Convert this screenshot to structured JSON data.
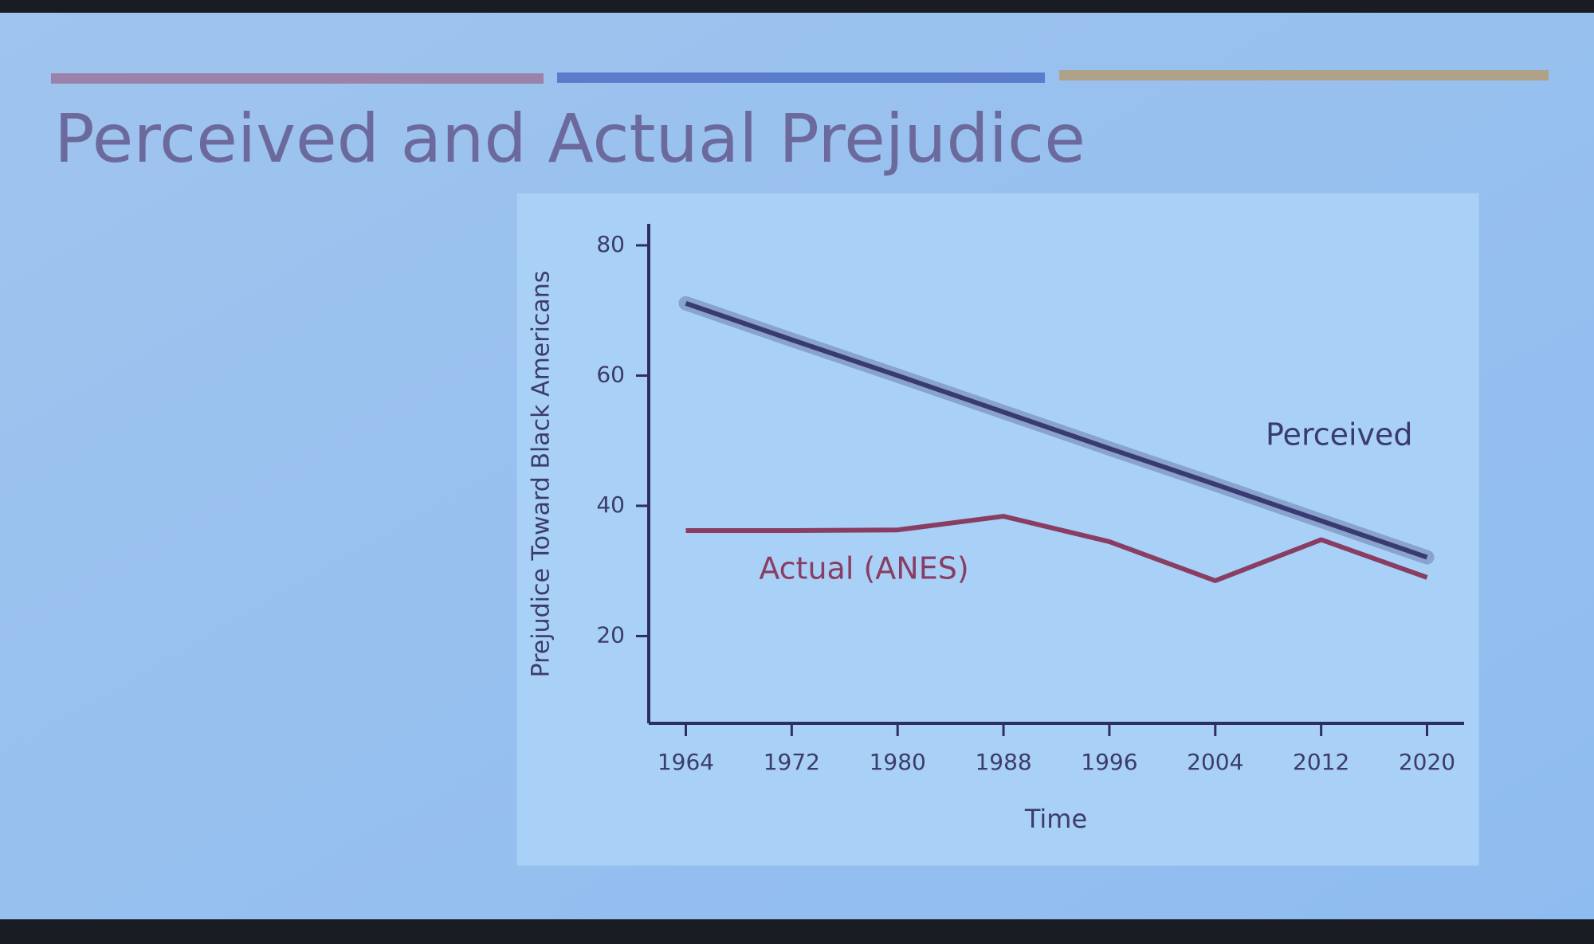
{
  "chart_data": {
    "type": "line",
    "title": "Perceived and Actual Prejudice",
    "x_label": "Time",
    "y_label": "Prejudice Toward Black Americans",
    "x": [
      1964,
      1972,
      1980,
      1988,
      1996,
      2004,
      2012,
      2020
    ],
    "series": [
      {
        "name": "Perceived",
        "color": "#3a3a72",
        "values": [
          71.1,
          65.5,
          60.0,
          54.4,
          48.8,
          43.3,
          37.7,
          32.1
        ]
      },
      {
        "name": "Actual (ANES)",
        "color": "#8a3d62",
        "values": [
          36.2,
          36.2,
          36.3,
          38.4,
          34.5,
          28.5,
          34.8,
          29.0
        ]
      }
    ],
    "xlim": [
      1961.2,
      2022.8
    ],
    "xticks": [
      1964,
      1972,
      1980,
      1988,
      1996,
      2004,
      2012,
      2020
    ],
    "ylim": [
      6.6,
      83.3
    ],
    "yticks": [
      20,
      40,
      60,
      80
    ],
    "grid": false
  }
}
